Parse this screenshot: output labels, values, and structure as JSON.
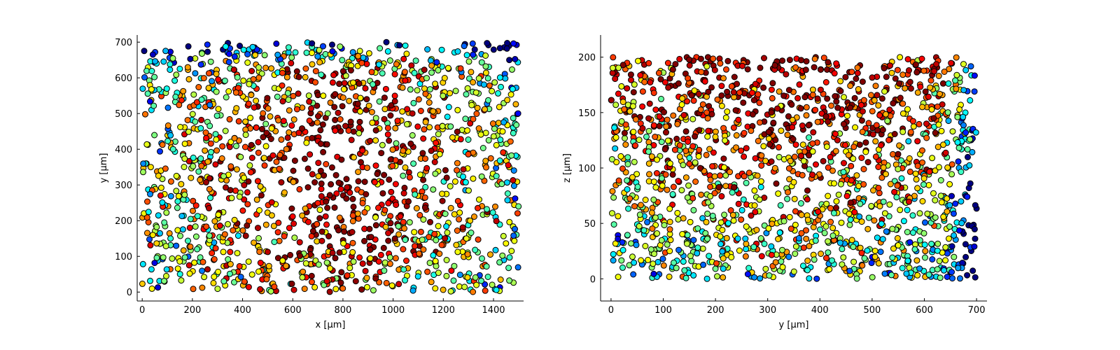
{
  "chart_data": [
    {
      "type": "scatter",
      "title": "",
      "xlabel": "x [μm]",
      "ylabel": "y [μm]",
      "xlim": [
        -20,
        1520
      ],
      "ylim": [
        -25,
        720
      ],
      "xticks": [
        0,
        200,
        400,
        600,
        800,
        1000,
        1200,
        1400
      ],
      "yticks": [
        0,
        100,
        200,
        300,
        400,
        500,
        600,
        700
      ],
      "grid": false,
      "legend": "none",
      "colormap": "jet",
      "marker_edge_color": "#000000",
      "point_count": 1600,
      "points_description_seed": 17
    },
    {
      "type": "scatter",
      "title": "",
      "xlabel": "y [μm]",
      "ylabel": "z [μm]",
      "xlim": [
        -20,
        720
      ],
      "ylim": [
        -20,
        220
      ],
      "xticks": [
        0,
        100,
        200,
        300,
        400,
        500,
        600,
        700
      ],
      "yticks": [
        0,
        50,
        100,
        150,
        200
      ],
      "grid": false,
      "legend": "none",
      "colormap": "jet",
      "marker_edge_color": "#000000",
      "point_count": 1600,
      "points_description_seed": 17
    }
  ]
}
